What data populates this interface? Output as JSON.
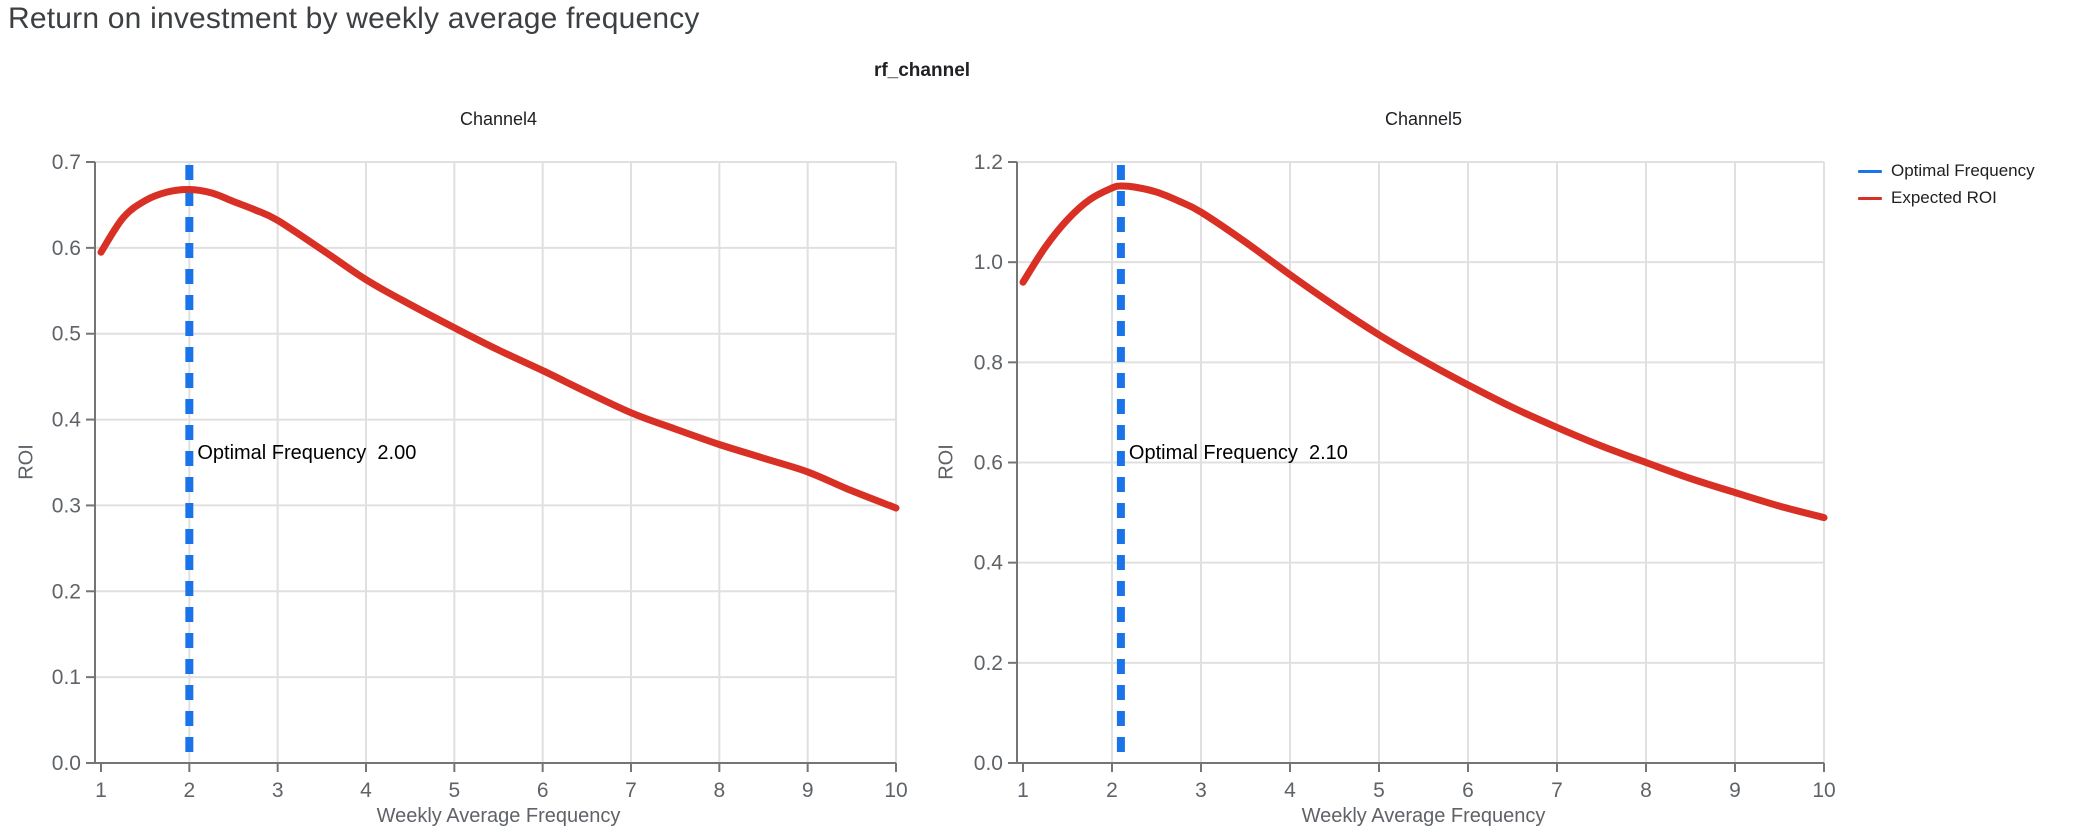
{
  "page": {
    "title": "Return on investment by weekly average frequency"
  },
  "figure": {
    "title": "rf_channel"
  },
  "legend": {
    "items": [
      {
        "label": "Optimal Frequency",
        "color": "#1A73E8"
      },
      {
        "label": "Expected ROI",
        "color": "#D93025"
      }
    ]
  },
  "colors": {
    "roi_line": "#D93025",
    "optimal_line": "#1A73E8",
    "grid": "#E0E0E0",
    "axis": "#757575",
    "tick_label": "#5F6368",
    "title_text": "#3C4043",
    "annotation_text": "#000000"
  },
  "chart_data": [
    {
      "type": "line",
      "title": "Channel4",
      "xlabel": "Weekly Average Frequency",
      "ylabel": "ROI",
      "xlim": [
        1,
        10
      ],
      "ylim": [
        0,
        0.7
      ],
      "x_ticks": [
        1,
        2,
        3,
        4,
        5,
        6,
        7,
        8,
        9,
        10
      ],
      "y_ticks": [
        0.0,
        0.1,
        0.2,
        0.3,
        0.4,
        0.5,
        0.6,
        0.7
      ],
      "grid": true,
      "legend_position": "right-top",
      "optimal_frequency": 2.0,
      "annotation": "Optimal Frequency  2.00",
      "series": [
        {
          "name": "Expected ROI",
          "x": [
            1,
            1.25,
            1.5,
            1.75,
            2,
            2.25,
            2.5,
            2.75,
            3,
            3.5,
            4,
            4.5,
            5,
            5.5,
            6,
            6.5,
            7,
            7.5,
            8,
            8.5,
            9,
            9.5,
            10
          ],
          "y": [
            0.595,
            0.635,
            0.655,
            0.665,
            0.668,
            0.664,
            0.654,
            0.644,
            0.632,
            0.598,
            0.563,
            0.534,
            0.507,
            0.481,
            0.457,
            0.432,
            0.408,
            0.389,
            0.371,
            0.355,
            0.339,
            0.317,
            0.297
          ]
        }
      ]
    },
    {
      "type": "line",
      "title": "Channel5",
      "xlabel": "Weekly Average Frequency",
      "ylabel": "ROI",
      "xlim": [
        1,
        10
      ],
      "ylim": [
        0,
        1.2
      ],
      "x_ticks": [
        1,
        2,
        3,
        4,
        5,
        6,
        7,
        8,
        9,
        10
      ],
      "y_ticks": [
        0.0,
        0.2,
        0.4,
        0.6,
        0.8,
        1.0,
        1.2
      ],
      "grid": true,
      "legend_position": "right-top",
      "optimal_frequency": 2.1,
      "annotation": "Optimal Frequency  2.10",
      "series": [
        {
          "name": "Expected ROI",
          "x": [
            1,
            1.25,
            1.5,
            1.75,
            2,
            2.1,
            2.25,
            2.5,
            2.75,
            3,
            3.5,
            4,
            4.5,
            5,
            5.5,
            6,
            6.5,
            7,
            7.5,
            8,
            8.5,
            9,
            9.5,
            10
          ],
          "y": [
            0.96,
            1.03,
            1.085,
            1.125,
            1.148,
            1.152,
            1.15,
            1.14,
            1.122,
            1.1,
            1.04,
            0.975,
            0.913,
            0.855,
            0.803,
            0.755,
            0.71,
            0.67,
            0.633,
            0.6,
            0.568,
            0.54,
            0.513,
            0.49
          ]
        }
      ]
    }
  ]
}
